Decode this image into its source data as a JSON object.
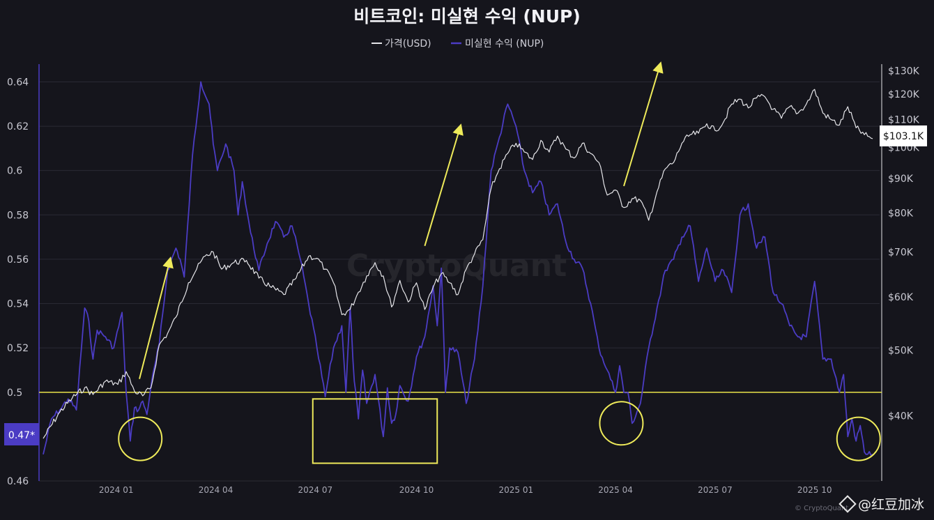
{
  "chart_data": {
    "type": "line",
    "title": "비트코인: 미실현 수익 (NUP)",
    "legend": [
      {
        "name": "가격(USD)",
        "color": "#e6e6ea"
      },
      {
        "name": "미실현 수익 (NUP)",
        "color": "#4b3cc4"
      }
    ],
    "left_axis": {
      "ticks": [
        "0.64",
        "0.62",
        "0.6",
        "0.58",
        "0.56",
        "0.54",
        "0.52",
        "0.5",
        "0.46"
      ],
      "tick_values": [
        0.64,
        0.62,
        0.6,
        0.58,
        0.56,
        0.54,
        0.52,
        0.5,
        0.46
      ],
      "range": [
        0.46,
        0.648
      ],
      "current_label": "0.47*"
    },
    "right_axis": {
      "ticks": [
        "$130K",
        "$120K",
        "$110K",
        "$100K",
        "$90K",
        "$80K",
        "$70K",
        "$60K",
        "$50K",
        "$40K"
      ],
      "tick_values": [
        130000,
        120000,
        110000,
        100000,
        90000,
        80000,
        70000,
        60000,
        50000,
        40000
      ],
      "scale": "log",
      "range": [
        32000,
        133000
      ],
      "current_label": "$103.1K"
    },
    "x_axis": {
      "ticks": [
        "2024 01",
        "2024 04",
        "2024 07",
        "2024 10",
        "2025 01",
        "2025 04",
        "2025 07",
        "2025 10"
      ],
      "tick_t": [
        0.088,
        0.208,
        0.328,
        0.45,
        0.57,
        0.69,
        0.81,
        0.93
      ]
    },
    "threshold": {
      "value": 0.5,
      "color": "#e9e24a"
    },
    "price_series": {
      "name": "가격(USD)",
      "t": [
        0.0,
        0.02,
        0.035,
        0.05,
        0.06,
        0.075,
        0.09,
        0.1,
        0.11,
        0.12,
        0.13,
        0.14,
        0.15,
        0.16,
        0.175,
        0.185,
        0.195,
        0.205,
        0.215,
        0.23,
        0.245,
        0.26,
        0.275,
        0.29,
        0.305,
        0.32,
        0.33,
        0.34,
        0.35,
        0.36,
        0.37,
        0.38,
        0.39,
        0.4,
        0.41,
        0.42,
        0.43,
        0.44,
        0.45,
        0.46,
        0.47,
        0.48,
        0.49,
        0.5,
        0.51,
        0.52,
        0.53,
        0.54,
        0.55,
        0.56,
        0.57,
        0.58,
        0.59,
        0.6,
        0.61,
        0.62,
        0.63,
        0.64,
        0.65,
        0.66,
        0.67,
        0.68,
        0.69,
        0.7,
        0.71,
        0.72,
        0.73,
        0.74,
        0.75,
        0.76,
        0.77,
        0.78,
        0.79,
        0.8,
        0.81,
        0.82,
        0.83,
        0.84,
        0.85,
        0.86,
        0.87,
        0.88,
        0.89,
        0.9,
        0.91,
        0.92,
        0.93,
        0.94,
        0.95,
        0.96,
        0.97,
        0.98,
        0.99,
        1.0
      ],
      "values": [
        37000,
        40500,
        42500,
        44000,
        43000,
        45000,
        44500,
        46500,
        43500,
        42800,
        44000,
        51000,
        53000,
        56000,
        63000,
        66000,
        69000,
        70000,
        66000,
        67500,
        68000,
        64000,
        62000,
        60500,
        64000,
        69000,
        68500,
        66000,
        63000,
        56500,
        57500,
        61000,
        64500,
        67500,
        64500,
        58000,
        63500,
        59000,
        63000,
        57500,
        62000,
        65000,
        63000,
        60500,
        66000,
        69500,
        73000,
        87000,
        93000,
        98000,
        101500,
        98500,
        96000,
        102500,
        98500,
        104000,
        99500,
        96500,
        101500,
        98000,
        95000,
        85000,
        86500,
        81500,
        84000,
        83500,
        78000,
        86000,
        93000,
        95000,
        101500,
        104500,
        105000,
        108500,
        106000,
        109000,
        116000,
        118000,
        114500,
        118500,
        119000,
        114000,
        110500,
        115000,
        112500,
        116000,
        122000,
        112500,
        110000,
        108000,
        115000,
        107000,
        104500,
        103100
      ]
    },
    "nup_series": {
      "name": "미실현 수익 (NUP)",
      "t": [
        0.0,
        0.01,
        0.02,
        0.03,
        0.04,
        0.05,
        0.055,
        0.06,
        0.065,
        0.075,
        0.085,
        0.095,
        0.1,
        0.105,
        0.11,
        0.115,
        0.12,
        0.125,
        0.13,
        0.14,
        0.15,
        0.16,
        0.165,
        0.17,
        0.18,
        0.19,
        0.2,
        0.205,
        0.21,
        0.22,
        0.23,
        0.235,
        0.24,
        0.25,
        0.26,
        0.27,
        0.28,
        0.29,
        0.3,
        0.31,
        0.32,
        0.33,
        0.34,
        0.35,
        0.36,
        0.365,
        0.37,
        0.375,
        0.38,
        0.385,
        0.39,
        0.4,
        0.41,
        0.415,
        0.42,
        0.425,
        0.43,
        0.44,
        0.45,
        0.46,
        0.47,
        0.475,
        0.48,
        0.485,
        0.49,
        0.5,
        0.51,
        0.52,
        0.53,
        0.54,
        0.55,
        0.56,
        0.57,
        0.58,
        0.59,
        0.6,
        0.61,
        0.62,
        0.63,
        0.64,
        0.65,
        0.66,
        0.67,
        0.68,
        0.69,
        0.695,
        0.7,
        0.705,
        0.71,
        0.72,
        0.73,
        0.74,
        0.75,
        0.76,
        0.77,
        0.78,
        0.79,
        0.8,
        0.81,
        0.82,
        0.83,
        0.84,
        0.85,
        0.86,
        0.87,
        0.88,
        0.89,
        0.9,
        0.91,
        0.92,
        0.93,
        0.94,
        0.95,
        0.96,
        0.965,
        0.97,
        0.975,
        0.98,
        0.985,
        0.99,
        1.0
      ],
      "values": [
        0.472,
        0.488,
        0.492,
        0.497,
        0.492,
        0.538,
        0.532,
        0.515,
        0.528,
        0.525,
        0.52,
        0.536,
        0.5,
        0.478,
        0.493,
        0.492,
        0.496,
        0.49,
        0.503,
        0.522,
        0.555,
        0.565,
        0.56,
        0.552,
        0.607,
        0.64,
        0.63,
        0.612,
        0.6,
        0.612,
        0.6,
        0.58,
        0.595,
        0.572,
        0.555,
        0.567,
        0.577,
        0.57,
        0.575,
        0.56,
        0.54,
        0.52,
        0.498,
        0.52,
        0.53,
        0.5,
        0.538,
        0.505,
        0.488,
        0.51,
        0.495,
        0.508,
        0.48,
        0.502,
        0.486,
        0.49,
        0.503,
        0.496,
        0.516,
        0.525,
        0.548,
        0.53,
        0.556,
        0.5,
        0.52,
        0.518,
        0.495,
        0.515,
        0.548,
        0.6,
        0.615,
        0.63,
        0.62,
        0.6,
        0.59,
        0.595,
        0.58,
        0.585,
        0.568,
        0.56,
        0.556,
        0.54,
        0.52,
        0.51,
        0.5,
        0.512,
        0.5,
        0.5,
        0.486,
        0.495,
        0.52,
        0.538,
        0.555,
        0.56,
        0.57,
        0.575,
        0.55,
        0.565,
        0.55,
        0.555,
        0.545,
        0.58,
        0.585,
        0.565,
        0.57,
        0.545,
        0.54,
        0.53,
        0.525,
        0.525,
        0.55,
        0.515,
        0.515,
        0.5,
        0.508,
        0.48,
        0.488,
        0.478,
        0.485,
        0.473,
        0.472
      ]
    },
    "annotations": {
      "circles": [
        {
          "t": 0.117,
          "value": 0.479
        },
        {
          "t": 0.697,
          "value": 0.486
        },
        {
          "t": 0.983,
          "value": 0.479
        }
      ],
      "box": {
        "t0": 0.325,
        "t1": 0.475,
        "v0": 0.468,
        "v1": 0.497
      },
      "arrows": [
        {
          "t0": 0.116,
          "v0": 0.506,
          "t1": 0.153,
          "v1": 0.56
        },
        {
          "t0": 0.46,
          "v0": 0.566,
          "t1": 0.503,
          "v1": 0.62
        },
        {
          "t0": 0.7,
          "v0": 0.593,
          "t1": 0.744,
          "v1": 0.648
        }
      ],
      "color": "#eeea5a"
    },
    "watermark": "CryptoQuant",
    "credit": "© CryptoQuant"
  },
  "footer_label": "@红豆加冰"
}
